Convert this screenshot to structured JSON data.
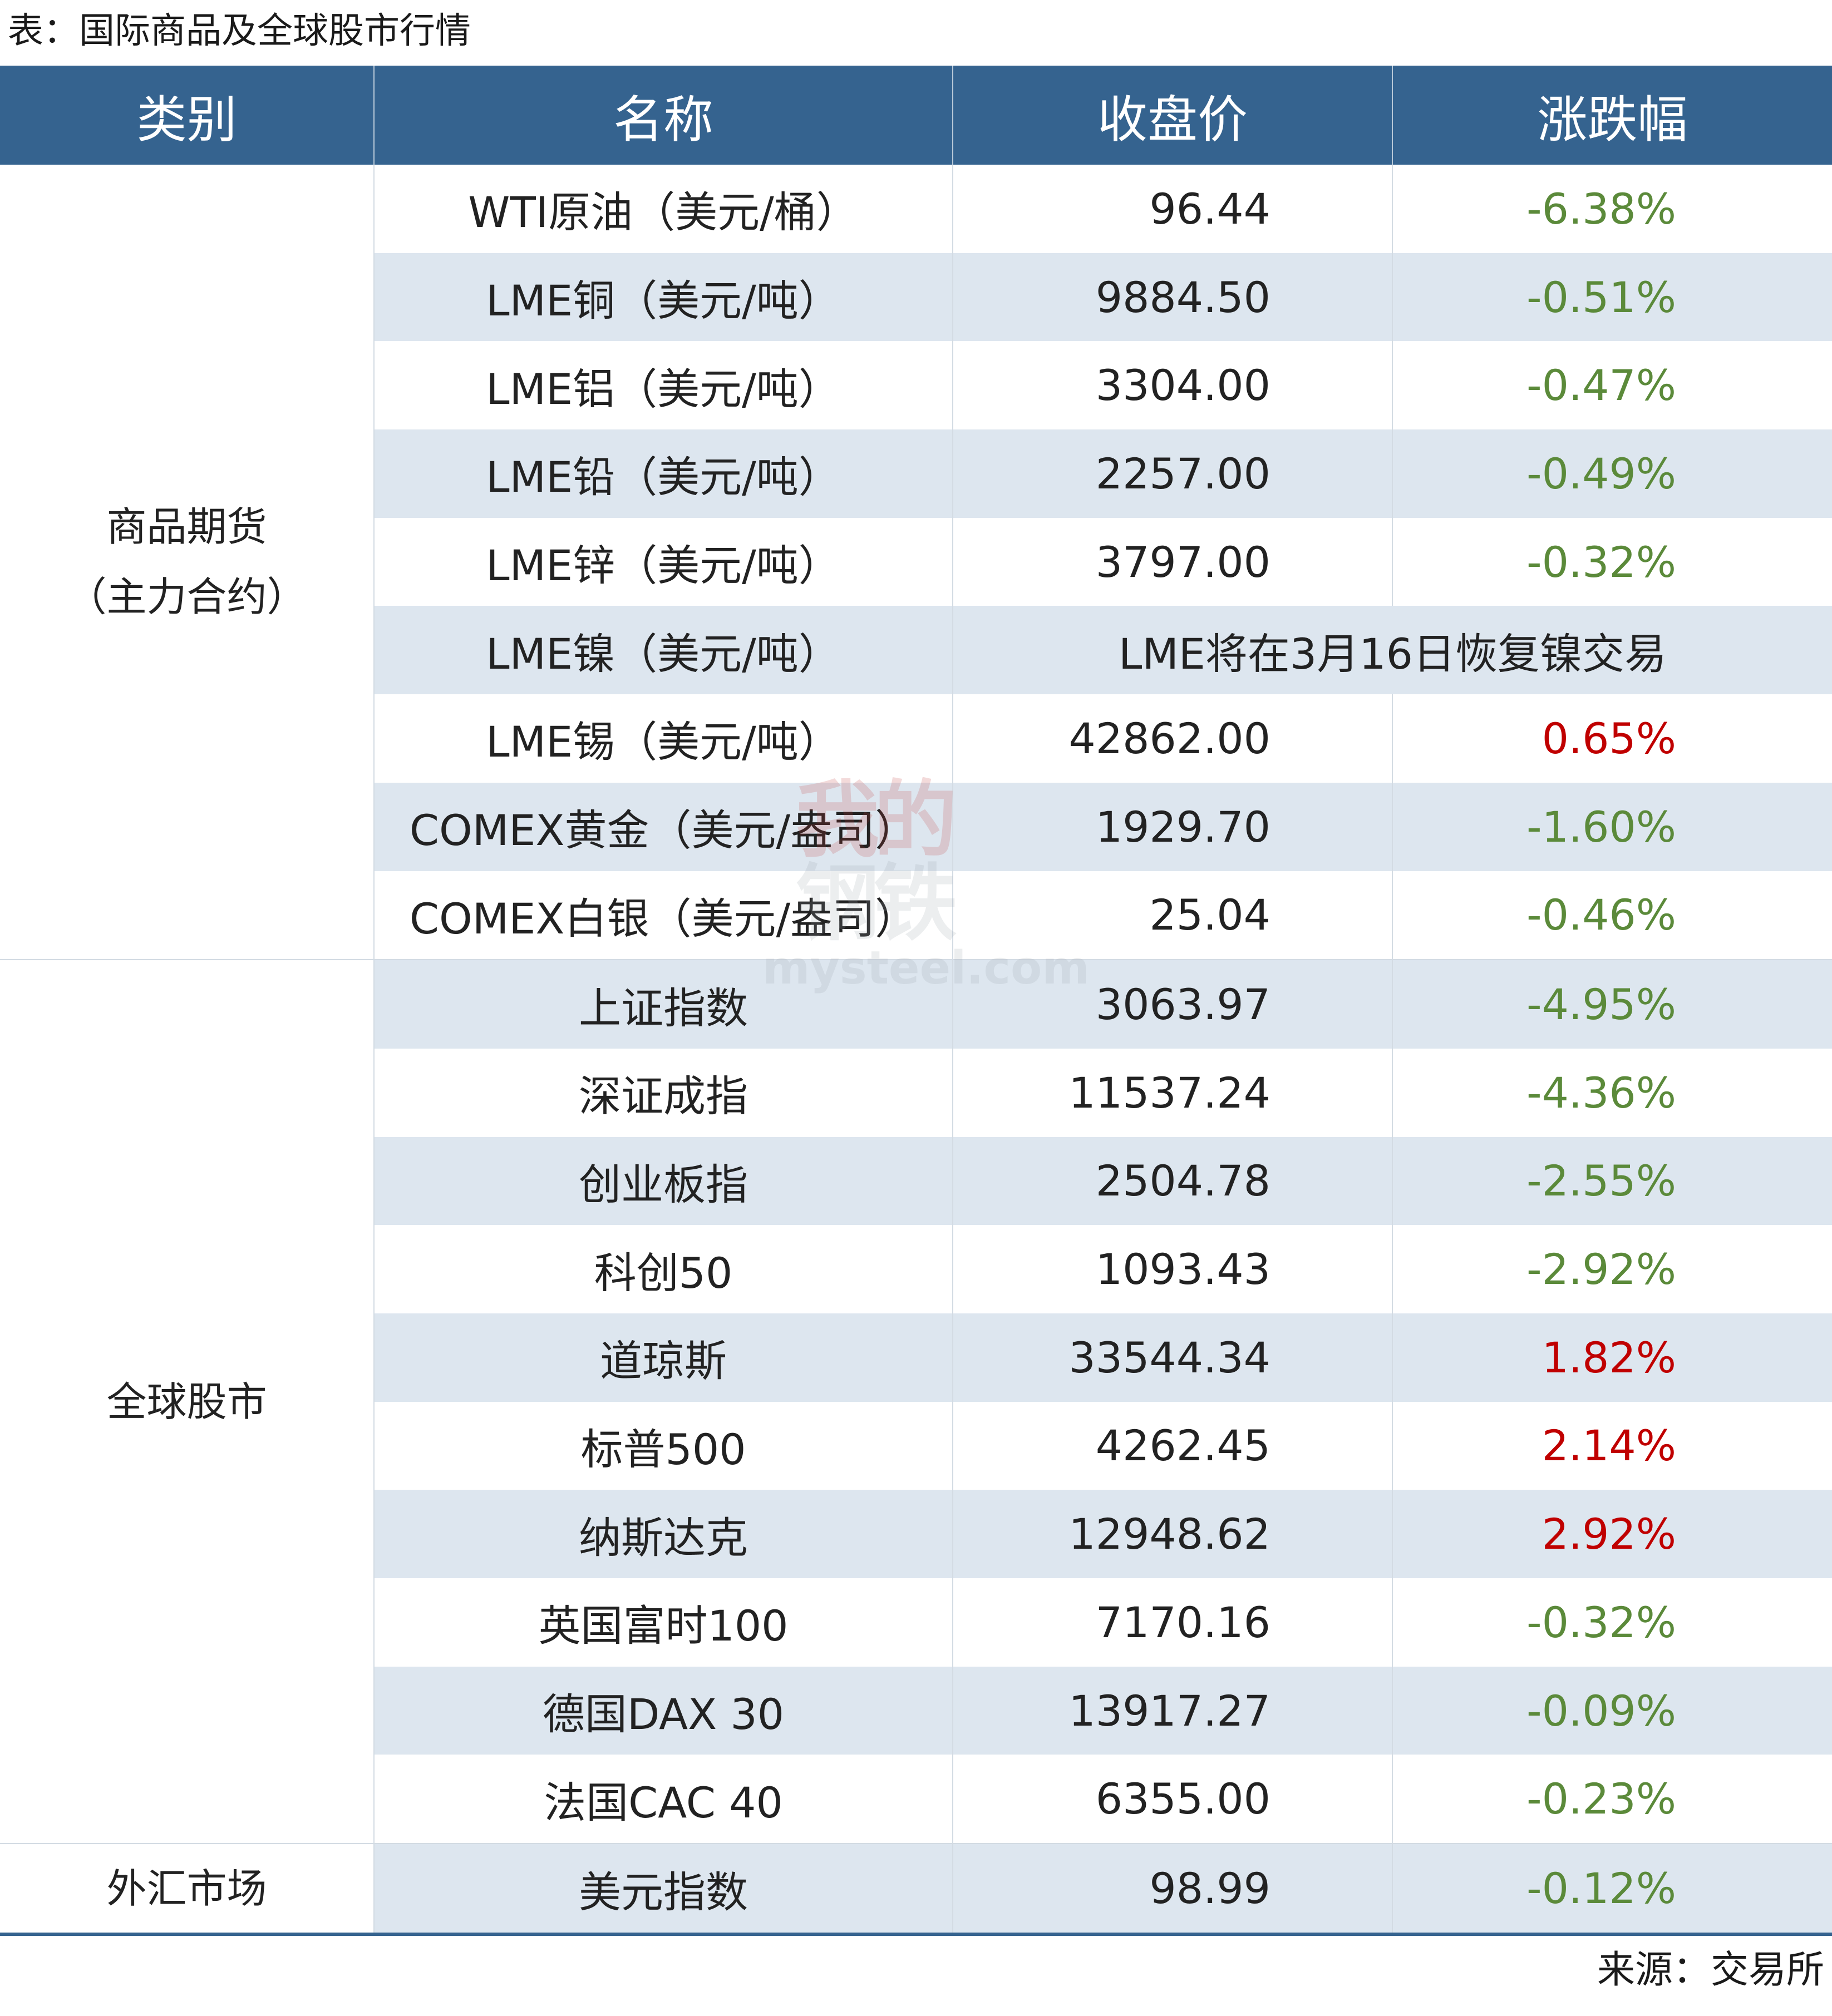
{
  "title": "表：国际商品及全球股市行情",
  "headers": [
    "类别",
    "名称",
    "收盘价",
    "涨跌幅"
  ],
  "groups": [
    {
      "category": [
        "商品期货",
        "（主力合约）"
      ]
    },
    {
      "category": [
        "全球股市"
      ]
    },
    {
      "category": [
        "外汇市场"
      ]
    }
  ],
  "rows": [
    {
      "name": "WTI原油（美元/桶）",
      "price": "96.44",
      "change": "-6.38%"
    },
    {
      "name": "LME铜（美元/吨）",
      "price": "9884.50",
      "change": "-0.51%"
    },
    {
      "name": "LME铝（美元/吨）",
      "price": "3304.00",
      "change": "-0.47%"
    },
    {
      "name": "LME铅（美元/吨）",
      "price": "2257.00",
      "change": "-0.49%"
    },
    {
      "name": "LME锌（美元/吨）",
      "price": "3797.00",
      "change": "-0.32%"
    },
    {
      "name": "LME镍（美元/吨）",
      "note": "LME将在3月16日恢复镍交易"
    },
    {
      "name": "LME锡（美元/吨）",
      "price": "42862.00",
      "change": "0.65%"
    },
    {
      "name": "COMEX黄金（美元/盎司）",
      "price": "1929.70",
      "change": "-1.60%"
    },
    {
      "name": "COMEX白银（美元/盎司）",
      "price": "25.04",
      "change": "-0.46%"
    },
    {
      "name": "上证指数",
      "price": "3063.97",
      "change": "-4.95%"
    },
    {
      "name": "深证成指",
      "price": "11537.24",
      "change": "-4.36%"
    },
    {
      "name": "创业板指",
      "price": "2504.78",
      "change": "-2.55%"
    },
    {
      "name": "科创50",
      "price": "1093.43",
      "change": "-2.92%"
    },
    {
      "name": "道琼斯",
      "price": "33544.34",
      "change": "1.82%"
    },
    {
      "name": "标普500",
      "price": "4262.45",
      "change": "2.14%"
    },
    {
      "name": "纳斯达克",
      "price": "12948.62",
      "change": "2.92%"
    },
    {
      "name": "英国富时100",
      "price": "7170.16",
      "change": "-0.32%"
    },
    {
      "name": "德国DAX 30",
      "price": "13917.27",
      "change": "-0.09%"
    },
    {
      "name": "法国CAC 40",
      "price": "6355.00",
      "change": "-0.23%"
    },
    {
      "name": "美元指数",
      "price": "98.99",
      "change": "-0.12%"
    }
  ],
  "source": "来源：交易所",
  "watermark": {
    "text_cn": "我的钢铁",
    "text_en": "mysteel.com"
  },
  "colors": {
    "header_bg": "#35638f",
    "stripe_bg": "#dde6ef",
    "negative": "#5b8a3a",
    "positive": "#c00000"
  }
}
